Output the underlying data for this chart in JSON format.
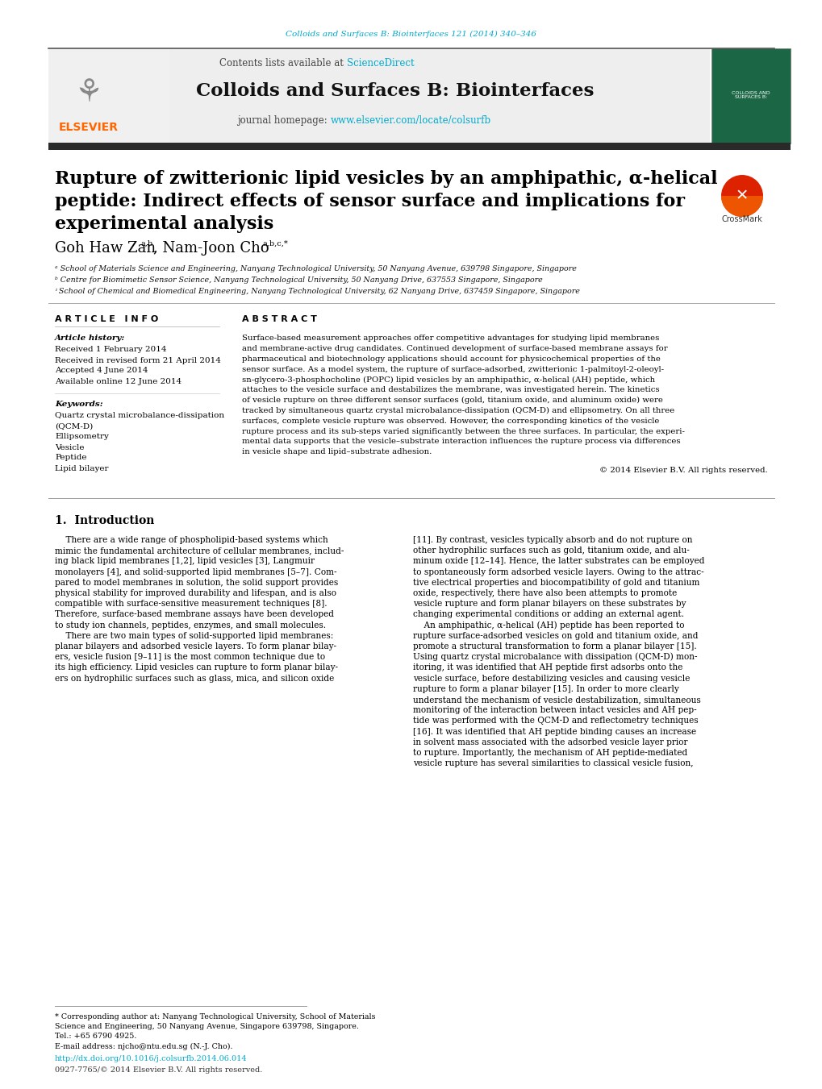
{
  "figsize": [
    10.2,
    13.51
  ],
  "dpi": 100,
  "bg_color": "#ffffff",
  "journal_ref_color": "#00aacc",
  "journal_ref": "Colloids and Surfaces B: Biointerfaces 121 (2014) 340–346",
  "sciencedirect_color": "#00aacc",
  "journal_name": "Colloids and Surfaces B: Biointerfaces",
  "journal_url_color": "#00aacc",
  "journal_url": "www.elsevier.com/locate/colsurfb",
  "title_text_line1": "Rupture of zwitterionic lipid vesicles by an amphipathic, α-helical",
  "title_text_line2": "peptide: Indirect effects of sensor surface and implications for",
  "title_text_line3": "experimental analysis",
  "affil_a": "ᵃ School of Materials Science and Engineering, Nanyang Technological University, 50 Nanyang Avenue, 639798 Singapore, Singapore",
  "affil_b": "ᵇ Centre for Biomimetic Sensor Science, Nanyang Technological University, 50 Nanyang Drive, 637553 Singapore, Singapore",
  "affil_c": "ᶦ School of Chemical and Biomedical Engineering, Nanyang Technological University, 62 Nanyang Drive, 637459 Singapore, Singapore",
  "article_info_header": "A R T I C L E   I N F O",
  "abstract_header": "A B S T R A C T",
  "article_history_label": "Article history:",
  "received1": "Received 1 February 2014",
  "received2": "Received in revised form 21 April 2014",
  "accepted": "Accepted 4 June 2014",
  "available": "Available online 12 June 2014",
  "keywords_label": "Keywords:",
  "keyword1": "Quartz crystal microbalance-dissipation",
  "keyword2": "(QCM-D)",
  "keyword3": "Ellipsometry",
  "keyword4": "Vesicle",
  "keyword5": "Peptide",
  "keyword6": "Lipid bilayer",
  "copyright": "© 2014 Elsevier B.V. All rights reserved.",
  "section1_title": "1.  Introduction",
  "doi_text": "http://dx.doi.org/10.1016/j.colsurfb.2014.06.014",
  "issn_text": "0927-7765/© 2014 Elsevier B.V. All rights reserved.",
  "abstract_lines": [
    "Surface-based measurement approaches offer competitive advantages for studying lipid membranes",
    "and membrane-active drug candidates. Continued development of surface-based membrane assays for",
    "pharmaceutical and biotechnology applications should account for physicochemical properties of the",
    "sensor surface. As a model system, the rupture of surface-adsorbed, zwitterionic 1-palmitoyl-2-oleoyl-",
    "sn-glycero-3-phosphocholine (POPC) lipid vesicles by an amphipathic, α-helical (AH) peptide, which",
    "attaches to the vesicle surface and destabilizes the membrane, was investigated herein. The kinetics",
    "of vesicle rupture on three different sensor surfaces (gold, titanium oxide, and aluminum oxide) were",
    "tracked by simultaneous quartz crystal microbalance-dissipation (QCM-D) and ellipsometry. On all three",
    "surfaces, complete vesicle rupture was observed. However, the corresponding kinetics of the vesicle",
    "rupture process and its sub-steps varied significantly between the three surfaces. In particular, the experi-",
    "mental data supports that the vesicle–substrate interaction influences the rupture process via differences",
    "in vesicle shape and lipid–substrate adhesion."
  ],
  "intro_left_lines": [
    "    There are a wide range of phospholipid-based systems which",
    "mimic the fundamental architecture of cellular membranes, includ-",
    "ing black lipid membranes [1,2], lipid vesicles [3], Langmuir",
    "monolayers [4], and solid-supported lipid membranes [5–7]. Com-",
    "pared to model membranes in solution, the solid support provides",
    "physical stability for improved durability and lifespan, and is also",
    "compatible with surface-sensitive measurement techniques [8].",
    "Therefore, surface-based membrane assays have been developed",
    "to study ion channels, peptides, enzymes, and small molecules.",
    "    There are two main types of solid-supported lipid membranes:",
    "planar bilayers and adsorbed vesicle layers. To form planar bilay-",
    "ers, vesicle fusion [9–11] is the most common technique due to",
    "its high efficiency. Lipid vesicles can rupture to form planar bilay-",
    "ers on hydrophilic surfaces such as glass, mica, and silicon oxide"
  ],
  "intro_right_lines": [
    "[11]. By contrast, vesicles typically absorb and do not rupture on",
    "other hydrophilic surfaces such as gold, titanium oxide, and alu-",
    "minum oxide [12–14]. Hence, the latter substrates can be employed",
    "to spontaneously form adsorbed vesicle layers. Owing to the attrac-",
    "tive electrical properties and biocompatibility of gold and titanium",
    "oxide, respectively, there have also been attempts to promote",
    "vesicle rupture and form planar bilayers on these substrates by",
    "changing experimental conditions or adding an external agent.",
    "    An amphipathic, α-helical (AH) peptide has been reported to",
    "rupture surface-adsorbed vesicles on gold and titanium oxide, and",
    "promote a structural transformation to form a planar bilayer [15].",
    "Using quartz crystal microbalance with dissipation (QCM-D) mon-",
    "itoring, it was identified that AH peptide first adsorbs onto the",
    "vesicle surface, before destabilizing vesicles and causing vesicle",
    "rupture to form a planar bilayer [15]. In order to more clearly",
    "understand the mechanism of vesicle destabilization, simultaneous",
    "monitoring of the interaction between intact vesicles and AH pep-",
    "tide was performed with the QCM-D and reflectometry techniques",
    "[16]. It was identified that AH peptide binding causes an increase",
    "in solvent mass associated with the adsorbed vesicle layer prior",
    "to rupture. Importantly, the mechanism of AH peptide-mediated",
    "vesicle rupture has several similarities to classical vesicle fusion,"
  ],
  "footnote_lines": [
    "* Corresponding author at: Nanyang Technological University, School of Materials",
    "Science and Engineering, 50 Nanyang Avenue, Singapore 639798, Singapore.",
    "Tel.: +65 6790 4925.",
    "E-mail address: njcho@ntu.edu.sg (N.-J. Cho)."
  ]
}
